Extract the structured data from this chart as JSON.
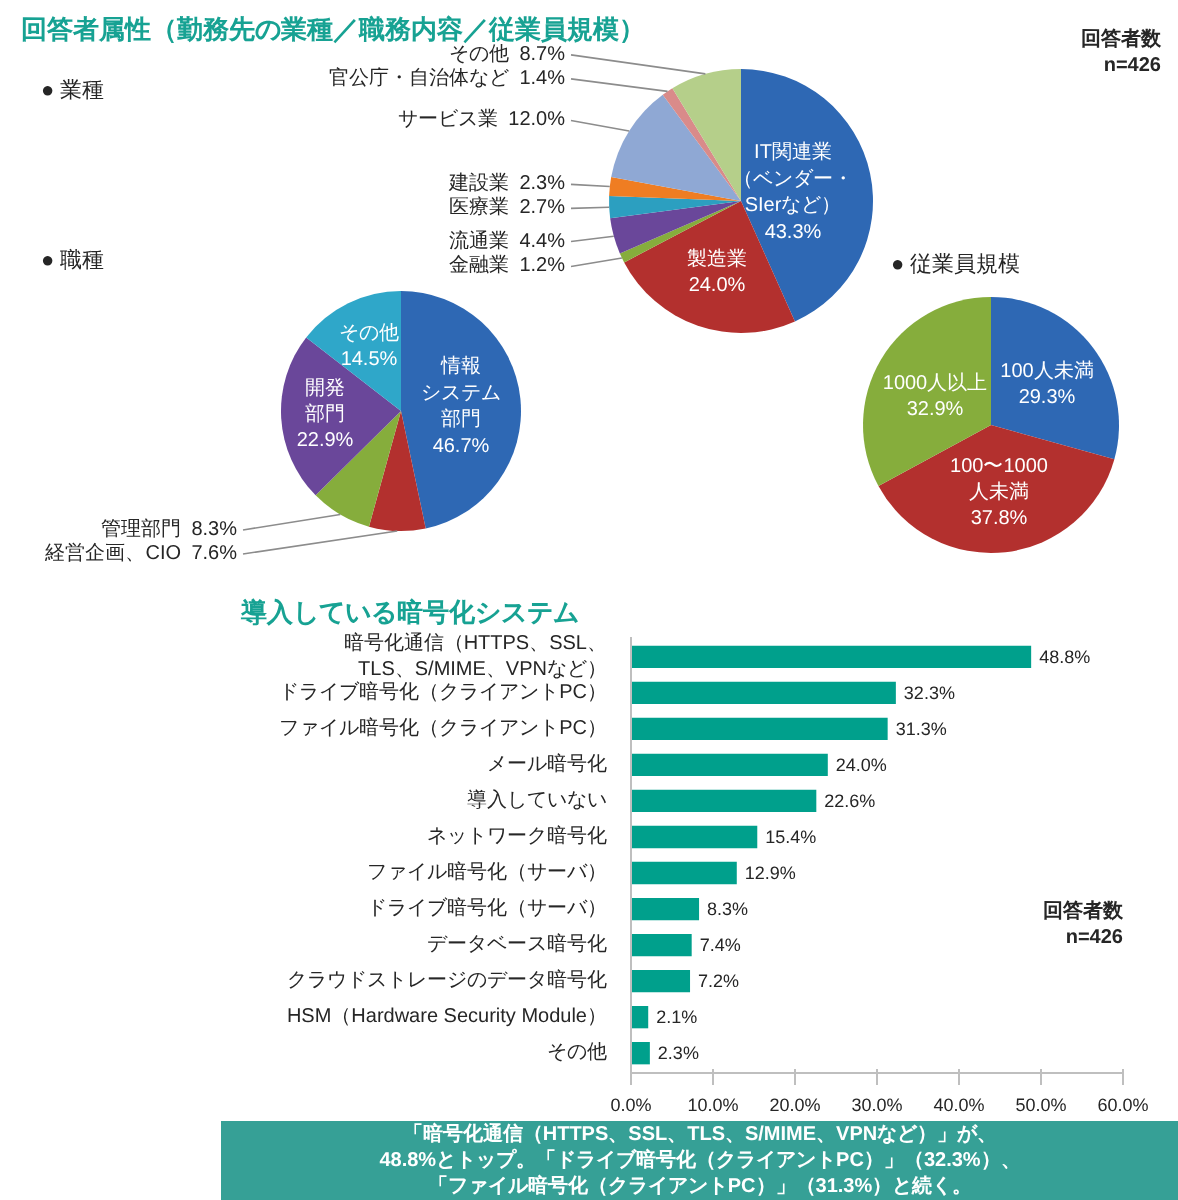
{
  "chart_data": [
    {
      "type": "pie",
      "title": "回答者属性（勤務先の業種／職務内容／従業員規模）",
      "subtitle": "● 業種",
      "categories": [
        "IT関連業（ベンダー・SIerなど）",
        "製造業",
        "金融業",
        "流通業",
        "医療業",
        "建設業",
        "サービス業",
        "官公庁・自治体など",
        "その他"
      ],
      "values": [
        43.3,
        24.0,
        1.2,
        4.4,
        2.7,
        2.3,
        12.0,
        1.4,
        8.7
      ],
      "colors": [
        "#2e68b4",
        "#b3302e",
        "#86ad3c",
        "#6a479a",
        "#2c9fc0",
        "#ef7d22",
        "#8fa8d4",
        "#d98b8a",
        "#b5cf8a"
      ],
      "value_labels": [
        "43.3%",
        "24.0%",
        "1.2%",
        "4.4%",
        "2.7%",
        "2.3%",
        "12.0%",
        "1.4%",
        "8.7%"
      ],
      "annotations": [
        "回答者数 n=426"
      ]
    },
    {
      "type": "pie",
      "title": "● 職種",
      "categories": [
        "情報システム部門",
        "経営企画、CIO",
        "管理部門",
        "開発部門",
        "その他"
      ],
      "values": [
        46.7,
        7.6,
        8.3,
        22.9,
        14.5
      ],
      "colors": [
        "#2e68b4",
        "#b3302e",
        "#86ad3c",
        "#6a479a",
        "#2fa7c9"
      ],
      "value_labels": [
        "46.7%",
        "7.6%",
        "8.3%",
        "22.9%",
        "14.5%"
      ]
    },
    {
      "type": "pie",
      "title": "● 従業員規模",
      "categories": [
        "100人未満",
        "100〜1000人未満",
        "1000人以上"
      ],
      "values": [
        29.3,
        37.8,
        32.9
      ],
      "colors": [
        "#2e68b4",
        "#b3302e",
        "#86ad3c"
      ],
      "value_labels": [
        "29.3%",
        "37.8%",
        "32.9%"
      ]
    },
    {
      "type": "bar",
      "orientation": "horizontal",
      "title": "導入している暗号化システム",
      "categories": [
        "暗号化通信（HTTPS、SSL、TLS、S/MIME、VPNなど）",
        "ドライブ暗号化（クライアントPC）",
        "ファイル暗号化（クライアントPC）",
        "メール暗号化",
        "導入していない",
        "ネットワーク暗号化",
        "ファイル暗号化（サーバ）",
        "ドライブ暗号化（サーバ）",
        "データベース暗号化",
        "クラウドストレージのデータ暗号化",
        "HSM（Hardware Security Module）",
        "その他"
      ],
      "values": [
        48.8,
        32.3,
        31.3,
        24.0,
        22.6,
        15.4,
        12.9,
        8.3,
        7.4,
        7.2,
        2.1,
        2.3
      ],
      "value_labels": [
        "48.8%",
        "32.3%",
        "31.3%",
        "24.0%",
        "22.6%",
        "15.4%",
        "12.9%",
        "8.3%",
        "7.4%",
        "7.2%",
        "2.1%",
        "2.3%"
      ],
      "color": "#00a08c",
      "xlim": [
        0,
        60
      ],
      "xticks": [
        {
          "value": 0,
          "label": "0.0%"
        },
        {
          "value": 10,
          "label": "10.0%"
        },
        {
          "value": 20,
          "label": "20.0%"
        },
        {
          "value": 30,
          "label": "30.0%"
        },
        {
          "value": 40,
          "label": "40.0%"
        },
        {
          "value": 50,
          "label": "50.0%"
        },
        {
          "value": 60,
          "label": "60.0%"
        }
      ],
      "annotations": [
        "回答者数 n=426",
        "「暗号化通信（HTTPS、SSL、TLS、S/MIME、VPNなど）」が、48.8%とトップ。「ドライブ暗号化（クライアントPC）」（32.3%）、「ファイル暗号化（クライアントPC）」（31.3%）と続く。"
      ]
    }
  ]
}
